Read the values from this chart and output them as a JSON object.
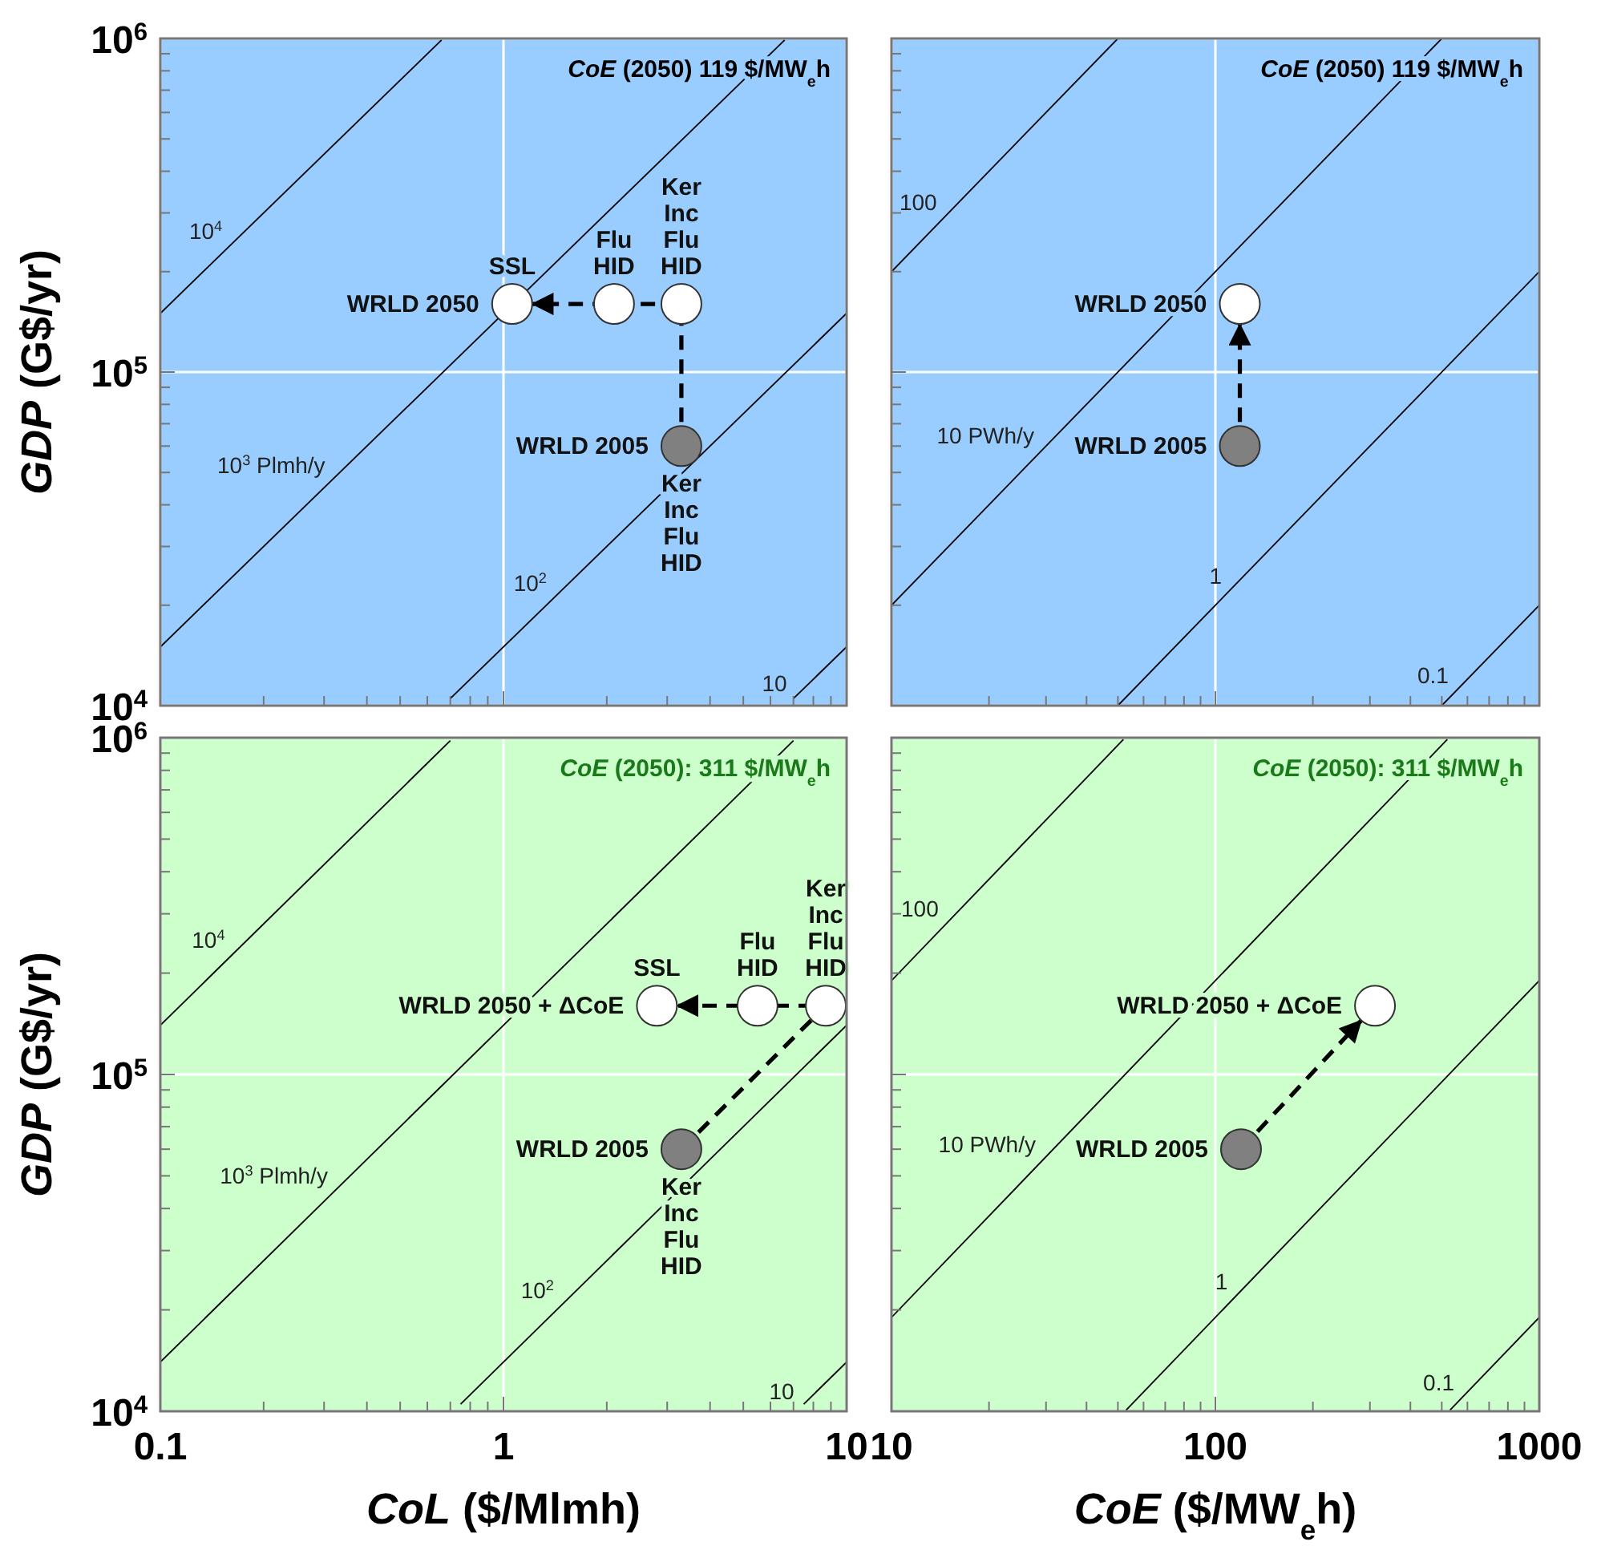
{
  "chart_data": [
    {
      "type": "scatter",
      "ylabel": "GDP (G$/yr)",
      "xlim": [
        0.1,
        10
      ],
      "ylim": [
        10000,
        1000000
      ],
      "log": "xy",
      "grid": true,
      "tick_labels": "y",
      "xticks": [
        0.1,
        {
          "value": 0.2,
          "label": null
        },
        {
          "value": 0.3,
          "label": null
        },
        {
          "value": 0.4,
          "label": null
        },
        {
          "value": 0.5,
          "label": null
        },
        {
          "value": 0.6,
          "label": null
        },
        {
          "value": 0.7,
          "label": null
        },
        {
          "value": 0.8,
          "label": null
        },
        {
          "value": 0.9,
          "label": null
        },
        1,
        {
          "value": 2,
          "label": null
        },
        {
          "value": 3,
          "label": null
        },
        {
          "value": 4,
          "label": null
        },
        {
          "value": 5,
          "label": null
        },
        {
          "value": 6,
          "label": null
        },
        {
          "value": 7,
          "label": null
        },
        {
          "value": 8,
          "label": null
        },
        {
          "value": 9,
          "label": null
        },
        10
      ],
      "yticks": [
        {
          "value": 10000,
          "label": "10$^{4}$"
        },
        {
          "value": 20000,
          "label": null
        },
        {
          "value": 30000,
          "label": null
        },
        {
          "value": 40000,
          "label": null
        },
        {
          "value": 50000,
          "label": null
        },
        {
          "value": 60000,
          "label": null
        },
        {
          "value": 70000,
          "label": null
        },
        {
          "value": 80000,
          "label": null
        },
        {
          "value": 90000,
          "label": null
        },
        {
          "value": 100000,
          "label": "10$^{5}$"
        },
        {
          "value": 200000,
          "label": null
        },
        {
          "value": 300000,
          "label": null
        },
        {
          "value": 400000,
          "label": null
        },
        {
          "value": 500000,
          "label": null
        },
        {
          "value": 600000,
          "label": null
        },
        {
          "value": 700000,
          "label": null
        },
        {
          "value": 800000,
          "label": null
        },
        {
          "value": 900000,
          "label": null
        },
        {
          "value": 1000000,
          "label": "10$^{6}$"
        }
      ],
      "annotations": [
        "CoE (2050) 119 $/MW$_{e}$h",
        {
          "text": "SSL",
          "x": 1.06,
          "y": 160000
        },
        {
          "text": "Flu\nHID",
          "x": 2.1,
          "y": 160000
        },
        {
          "text": "Ker\nInc\nFlu\nHID",
          "x": 3.3,
          "y": 160000
        },
        {
          "text": "Ker\nInc\nFlu\nHID",
          "x": 3.3,
          "y": 60000
        }
      ],
      "series": [
        {
          "type": "line",
          "name": "10$^{4}$",
          "color": "#000000",
          "x": [
            0.1,
            0.66
          ],
          "values": [
            150000,
            990000
          ]
        },
        {
          "type": "line",
          "name": "10$^{3}$ Plmh/y",
          "color": "#000000",
          "x": [
            0.1,
            6.6
          ],
          "values": [
            15000,
            990000
          ]
        },
        {
          "type": "line",
          "name": "10$^{2}$",
          "color": "#000000",
          "x": [
            0.7,
            10
          ],
          "values": [
            10500,
            150000
          ]
        },
        {
          "type": "line",
          "name": "10",
          "color": "#000000",
          "x": [
            7,
            10
          ],
          "values": [
            10500,
            15000
          ]
        },
        {
          "type": "line",
          "line_style": "dashed",
          "color": "#000000",
          "x": [
            3.3,
            3.3,
            1.06
          ],
          "values": [
            60000,
            160000,
            160000
          ]
        },
        {
          "type": "scatter",
          "name": "WRLD 2005",
          "marker": "circle",
          "color": "#808080",
          "x": [
            3.3
          ],
          "values": [
            60000
          ]
        },
        {
          "type": "scatter",
          "name": "WRLD 2050",
          "marker": "circle",
          "color": "#ffffff",
          "x": [
            1.06,
            2.1,
            3.3
          ],
          "values": [
            160000,
            160000,
            160000
          ]
        }
      ]
    },
    {
      "type": "scatter",
      "xlim": [
        10,
        1000
      ],
      "ylim": [
        10000,
        1000000
      ],
      "log": "xy",
      "grid": true,
      "tick_labels": false,
      "xticks": [
        10,
        {
          "value": 20,
          "label": null
        },
        {
          "value": 30,
          "label": null
        },
        {
          "value": 40,
          "label": null
        },
        {
          "value": 50,
          "label": null
        },
        {
          "value": 60,
          "label": null
        },
        {
          "value": 70,
          "label": null
        },
        {
          "value": 80,
          "label": null
        },
        {
          "value": 90,
          "label": null
        },
        100,
        {
          "value": 200,
          "label": null
        },
        {
          "value": 300,
          "label": null
        },
        {
          "value": 400,
          "label": null
        },
        {
          "value": 500,
          "label": null
        },
        {
          "value": 600,
          "label": null
        },
        {
          "value": 700,
          "label": null
        },
        {
          "value": 800,
          "label": null
        },
        {
          "value": 900,
          "label": null
        },
        1000
      ],
      "yticks": [
        10000,
        {
          "value": 20000,
          "label": null
        },
        {
          "value": 30000,
          "label": null
        },
        {
          "value": 40000,
          "label": null
        },
        {
          "value": 50000,
          "label": null
        },
        {
          "value": 60000,
          "label": null
        },
        {
          "value": 70000,
          "label": null
        },
        {
          "value": 80000,
          "label": null
        },
        {
          "value": 90000,
          "label": null
        },
        100000,
        {
          "value": 200000,
          "label": null
        },
        {
          "value": 300000,
          "label": null
        },
        {
          "value": 400000,
          "label": null
        },
        {
          "value": 500000,
          "label": null
        },
        {
          "value": 600000,
          "label": null
        },
        {
          "value": 700000,
          "label": null
        },
        {
          "value": 800000,
          "label": null
        },
        {
          "value": 900000,
          "label": null
        },
        1000000
      ],
      "annotations": [
        "CoE (2050) 119 $/MW$_{e}$h"
      ],
      "series": [
        {
          "type": "line",
          "name": "100",
          "color": "#000000",
          "x": [
            10,
            50
          ],
          "values": [
            200000,
            1000000
          ]
        },
        {
          "type": "line",
          "name": "10 PWh/y",
          "color": "#000000",
          "x": [
            10,
            500
          ],
          "values": [
            20000,
            1000000
          ]
        },
        {
          "type": "line",
          "name": "1",
          "color": "#000000",
          "x": [
            50,
            1000
          ],
          "values": [
            10000,
            200000
          ]
        },
        {
          "type": "line",
          "name": "0.1",
          "color": "#000000",
          "x": [
            500,
            1000
          ],
          "values": [
            10000,
            20000
          ]
        },
        {
          "type": "line",
          "line_style": "dashed",
          "color": "#000000",
          "x": [
            119,
            119
          ],
          "values": [
            60000,
            160000
          ]
        },
        {
          "type": "scatter",
          "name": "WRLD 2005",
          "marker": "circle",
          "color": "#808080",
          "x": [
            119
          ],
          "values": [
            60000
          ]
        },
        {
          "type": "scatter",
          "name": "WRLD 2050",
          "marker": "circle",
          "color": "#ffffff",
          "x": [
            119
          ],
          "values": [
            160000
          ]
        }
      ]
    },
    {
      "type": "scatter",
      "xlabel": "CoL ($/Mlmh)",
      "ylabel": "GDP (G$/yr)",
      "xlim": [
        0.1,
        10
      ],
      "ylim": [
        10000,
        1000000
      ],
      "log": "xy",
      "grid": true,
      "xticks": [
        0.1,
        {
          "value": 0.2,
          "label": null
        },
        {
          "value": 0.3,
          "label": null
        },
        {
          "value": 0.4,
          "label": null
        },
        {
          "value": 0.5,
          "label": null
        },
        {
          "value": 0.6,
          "label": null
        },
        {
          "value": 0.7,
          "label": null
        },
        {
          "value": 0.8,
          "label": null
        },
        {
          "value": 0.9,
          "label": null
        },
        1,
        {
          "value": 2,
          "label": null
        },
        {
          "value": 3,
          "label": null
        },
        {
          "value": 4,
          "label": null
        },
        {
          "value": 5,
          "label": null
        },
        {
          "value": 6,
          "label": null
        },
        {
          "value": 7,
          "label": null
        },
        {
          "value": 8,
          "label": null
        },
        {
          "value": 9,
          "label": null
        },
        10
      ],
      "yticks": [
        {
          "value": 10000,
          "label": "10$^{4}$"
        },
        {
          "value": 20000,
          "label": null
        },
        {
          "value": 30000,
          "label": null
        },
        {
          "value": 40000,
          "label": null
        },
        {
          "value": 50000,
          "label": null
        },
        {
          "value": 60000,
          "label": null
        },
        {
          "value": 70000,
          "label": null
        },
        {
          "value": 80000,
          "label": null
        },
        {
          "value": 90000,
          "label": null
        },
        {
          "value": 100000,
          "label": "10$^{5}$"
        },
        {
          "value": 200000,
          "label": null
        },
        {
          "value": 300000,
          "label": null
        },
        {
          "value": 400000,
          "label": null
        },
        {
          "value": 500000,
          "label": null
        },
        {
          "value": 600000,
          "label": null
        },
        {
          "value": 700000,
          "label": null
        },
        {
          "value": 800000,
          "label": null
        },
        {
          "value": 900000,
          "label": null
        },
        {
          "value": 1000000,
          "label": "10$^{6}$"
        }
      ],
      "annotations": [
        "CoE (2050): 311 $/MW$_{e}$h",
        {
          "text": "SSL",
          "x": 2.8,
          "y": 160000
        },
        {
          "text": "Flu\nHID",
          "x": 5.5,
          "y": 160000
        },
        {
          "text": "Ker\nInc\nFlu\nHID",
          "x": 8.7,
          "y": 160000
        },
        {
          "text": "Ker\nInc\nFlu\nHID",
          "x": 3.3,
          "y": 60000
        }
      ],
      "series": [
        {
          "type": "line",
          "name": "10$^{4}$",
          "color": "#000000",
          "x": [
            0.1,
            0.7
          ],
          "values": [
            140000,
            980000
          ]
        },
        {
          "type": "line",
          "name": "10$^{3}$ Plmh/y",
          "color": "#000000",
          "x": [
            0.1,
            7
          ],
          "values": [
            14000,
            980000
          ]
        },
        {
          "type": "line",
          "name": "10$^{2}$",
          "color": "#000000",
          "x": [
            0.75,
            10
          ],
          "values": [
            10500,
            140000
          ]
        },
        {
          "type": "line",
          "name": "10",
          "color": "#000000",
          "x": [
            7.5,
            10
          ],
          "values": [
            10500,
            14000
          ]
        },
        {
          "type": "line",
          "line_style": "dashed",
          "color": "#000000",
          "x": [
            3.3,
            8.7,
            2.8
          ],
          "values": [
            60000,
            160000,
            160000
          ]
        },
        {
          "type": "scatter",
          "name": "WRLD 2005",
          "marker": "circle",
          "color": "#808080",
          "x": [
            3.3
          ],
          "values": [
            60000
          ]
        },
        {
          "type": "scatter",
          "name": "WRLD 2050 + ΔCoE",
          "marker": "circle",
          "color": "#ffffff",
          "x": [
            2.8,
            5.5,
            8.7
          ],
          "values": [
            160000,
            160000,
            160000
          ]
        }
      ]
    },
    {
      "type": "scatter",
      "xlabel": "CoE ($/MW$_{e}$h)",
      "xlim": [
        10,
        1000
      ],
      "ylim": [
        10000,
        1000000
      ],
      "log": "xy",
      "grid": true,
      "tick_labels": "x",
      "xticks": [
        10,
        {
          "value": 20,
          "label": null
        },
        {
          "value": 30,
          "label": null
        },
        {
          "value": 40,
          "label": null
        },
        {
          "value": 50,
          "label": null
        },
        {
          "value": 60,
          "label": null
        },
        {
          "value": 70,
          "label": null
        },
        {
          "value": 80,
          "label": null
        },
        {
          "value": 90,
          "label": null
        },
        100,
        {
          "value": 200,
          "label": null
        },
        {
          "value": 300,
          "label": null
        },
        {
          "value": 400,
          "label": null
        },
        {
          "value": 500,
          "label": null
        },
        {
          "value": 600,
          "label": null
        },
        {
          "value": 700,
          "label": null
        },
        {
          "value": 800,
          "label": null
        },
        {
          "value": 900,
          "label": null
        },
        1000
      ],
      "yticks": [
        10000,
        {
          "value": 20000,
          "label": null
        },
        {
          "value": 30000,
          "label": null
        },
        {
          "value": 40000,
          "label": null
        },
        {
          "value": 50000,
          "label": null
        },
        {
          "value": 60000,
          "label": null
        },
        {
          "value": 70000,
          "label": null
        },
        {
          "value": 80000,
          "label": null
        },
        {
          "value": 90000,
          "label": null
        },
        100000,
        {
          "value": 200000,
          "label": null
        },
        {
          "value": 300000,
          "label": null
        },
        {
          "value": 400000,
          "label": null
        },
        {
          "value": 500000,
          "label": null
        },
        {
          "value": 600000,
          "label": null
        },
        {
          "value": 700000,
          "label": null
        },
        {
          "value": 800000,
          "label": null
        },
        {
          "value": 900000,
          "label": null
        },
        1000000
      ],
      "annotations": [
        "CoE (2050): 311 $/MW$_{e}$h"
      ],
      "series": [
        {
          "type": "line",
          "name": "100",
          "color": "#000000",
          "x": [
            10,
            52
          ],
          "values": [
            190000,
            988000
          ]
        },
        {
          "type": "line",
          "name": "10 PWh/y",
          "color": "#000000",
          "x": [
            10,
            520
          ],
          "values": [
            19000,
            988000
          ]
        },
        {
          "type": "line",
          "name": "1",
          "color": "#000000",
          "x": [
            53,
            1000
          ],
          "values": [
            10070,
            190000
          ]
        },
        {
          "type": "line",
          "name": "0.1",
          "color": "#000000",
          "x": [
            530,
            1000
          ],
          "values": [
            10070,
            19000
          ]
        },
        {
          "type": "line",
          "line_style": "dashed",
          "color": "#000000",
          "x": [
            120,
            311
          ],
          "values": [
            60000,
            160000
          ]
        },
        {
          "type": "scatter",
          "name": "WRLD 2005",
          "marker": "circle",
          "color": "#808080",
          "x": [
            120
          ],
          "values": [
            60000
          ]
        },
        {
          "type": "scatter",
          "name": "WRLD 2050 + ΔCoE",
          "marker": "circle",
          "color": "#ffffff",
          "x": [
            311
          ],
          "values": [
            160000
          ]
        }
      ]
    }
  ]
}
